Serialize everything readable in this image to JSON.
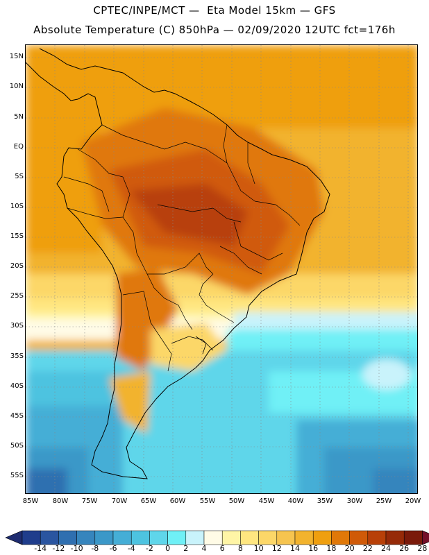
{
  "title_line1": "CPTEC/INPE/MCT —  Eta Model 15km — GFS",
  "title_line2": "Absolute Temperature (C) 850hPa — 02/09/2020 12UTC fct=176h",
  "lat_labels": [
    "15N",
    "10N",
    "5N",
    "EQ",
    "5S",
    "10S",
    "15S",
    "20S",
    "25S",
    "30S",
    "35S",
    "40S",
    "45S",
    "50S",
    "55S"
  ],
  "lon_labels": [
    "85W",
    "80W",
    "75W",
    "70W",
    "65W",
    "60W",
    "55W",
    "50W",
    "45W",
    "40W",
    "35W",
    "30W",
    "25W",
    "20W"
  ],
  "colorbar": {
    "labels": [
      "-14",
      "-12",
      "-10",
      "-8",
      "-6",
      "-4",
      "-2",
      "0",
      "2",
      "4",
      "6",
      "8",
      "10",
      "12",
      "14",
      "16",
      "18",
      "20",
      "22",
      "24",
      "26",
      "28"
    ],
    "colors": [
      "#1f3d8c",
      "#2a55a0",
      "#2f6fb0",
      "#3685bd",
      "#3b98c8",
      "#45aed6",
      "#4dc3e0",
      "#5fd6ea",
      "#6ff0f6",
      "#c9f3fb",
      "#fffbe6",
      "#fff5a6",
      "#ffe680",
      "#fcd768",
      "#f6c44f",
      "#f2b32e",
      "#ef9f0f",
      "#e07808",
      "#d05a08",
      "#b84008",
      "#962a08",
      "#7a1a0a"
    ],
    "low_arrow_color": "#1e2c70",
    "high_arrow_color": "#74102a"
  }
}
